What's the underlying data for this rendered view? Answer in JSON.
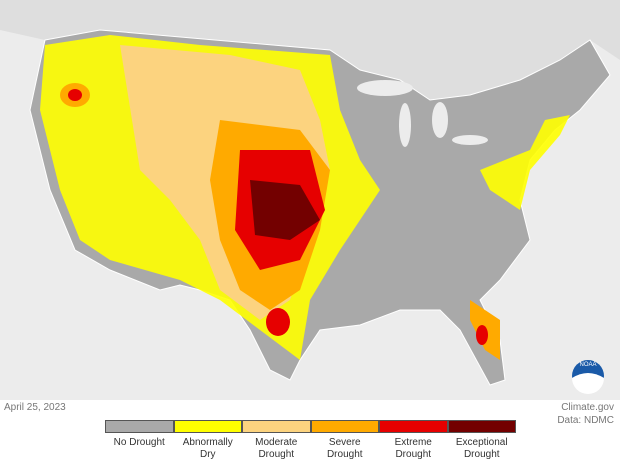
{
  "header": {
    "date": "April 25, 2023",
    "source": "Climate.gov",
    "data_credit": "Data: NDMC",
    "logo": "NOAA"
  },
  "legend": {
    "items": [
      {
        "label": "No Drought",
        "color": "#a9a9a9"
      },
      {
        "label": "Abnormally Dry",
        "color": "#ffff00"
      },
      {
        "label": "Moderate Drought",
        "color": "#fcd37f"
      },
      {
        "label": "Severe Drought",
        "color": "#ffaa00"
      },
      {
        "label": "Extreme Drought",
        "color": "#e60000"
      },
      {
        "label": "Exceptional Drought",
        "color": "#730000"
      }
    ]
  }
}
